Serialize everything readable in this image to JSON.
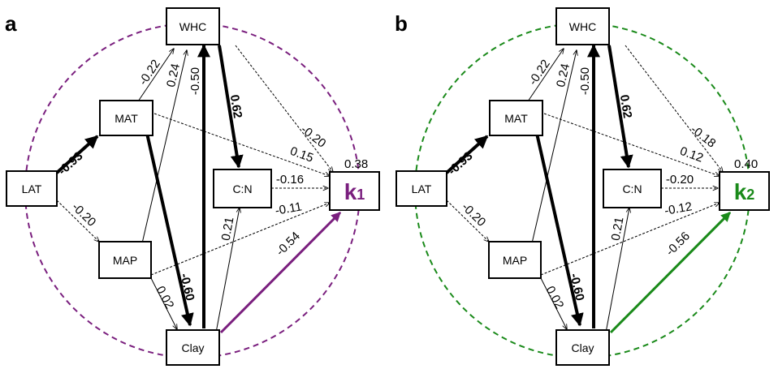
{
  "colors": {
    "a": "#7a1f7e",
    "b": "#1a8a1a",
    "black": "#000000"
  },
  "panels": [
    {
      "letter": "a",
      "target_main": "k",
      "target_sub": "1",
      "r2": "0.38",
      "nodes": {
        "lat": "LAT",
        "mat": "MAT",
        "map": "MAP",
        "whc": "WHC",
        "cn": "C:N",
        "clay": "Clay"
      },
      "coefs": {
        "lat_mat": "-0.93",
        "lat_map": "-0.20",
        "mat_whc": "-0.22",
        "map_whc": "0.24",
        "clay_whc": "-0.50",
        "whc_cn": "0.62",
        "whc_k": "-0.20",
        "mat_k": "0.15",
        "cn_k": "-0.16",
        "map_k": "-0.11",
        "clay_cn": "0.21",
        "clay_k": "-0.54",
        "mat_clay": "-0.60",
        "map_clay": "0.02"
      }
    },
    {
      "letter": "b",
      "target_main": "k",
      "target_sub": "2",
      "r2": "0.40",
      "nodes": {
        "lat": "LAT",
        "mat": "MAT",
        "map": "MAP",
        "whc": "WHC",
        "cn": "C:N",
        "clay": "Clay"
      },
      "coefs": {
        "lat_mat": "-0.93",
        "lat_map": "-0.20",
        "mat_whc": "-0.22",
        "map_whc": "0.24",
        "clay_whc": "-0.50",
        "whc_cn": "0.62",
        "whc_k": "-0.18",
        "mat_k": "0.12",
        "cn_k": "-0.20",
        "map_k": "-0.12",
        "clay_cn": "0.21",
        "clay_k": "-0.56",
        "mat_clay": "-0.60",
        "map_clay": "0.02"
      }
    }
  ]
}
